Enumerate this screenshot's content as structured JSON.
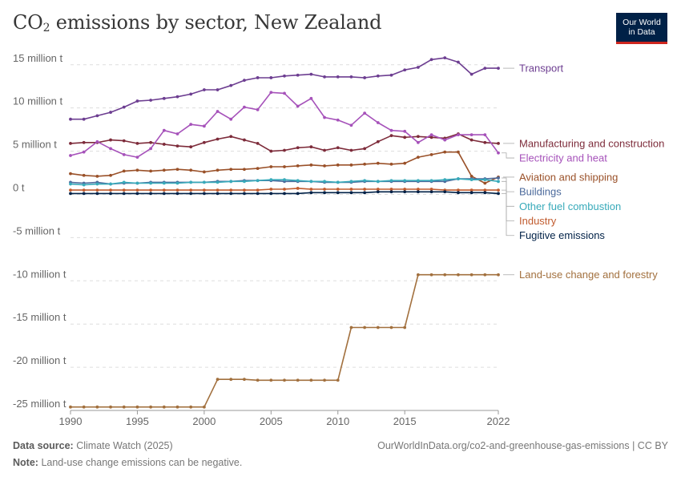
{
  "header": {
    "title_main": "CO",
    "title_sub": "2",
    "title_rest": " emissions by sector, New Zealand",
    "logo_line1": "Our World",
    "logo_line2": "in Data"
  },
  "footer": {
    "source_label": "Data source:",
    "source_text": "Climate Watch (2025)",
    "url": "OurWorldInData.org/co2-and-greenhouse-gas-emissions | CC BY",
    "note_label": "Note:",
    "note_text": "Land-use change emissions can be negative."
  },
  "chart_data": {
    "type": "line",
    "x": [
      1990,
      1991,
      1992,
      1993,
      1994,
      1995,
      1996,
      1997,
      1998,
      1999,
      2000,
      2001,
      2002,
      2003,
      2004,
      2005,
      2006,
      2007,
      2008,
      2009,
      2010,
      2011,
      2012,
      2013,
      2014,
      2015,
      2016,
      2017,
      2018,
      2019,
      2020,
      2021,
      2022
    ],
    "xticks": [
      1990,
      1995,
      2000,
      2005,
      2010,
      2015,
      2022
    ],
    "xlim": [
      1990,
      2022
    ],
    "ylim": [
      -25,
      16
    ],
    "yticks": [
      {
        "value": 15,
        "label": "15 million t"
      },
      {
        "value": 10,
        "label": "10 million t"
      },
      {
        "value": 5,
        "label": "5 million t"
      },
      {
        "value": 0,
        "label": "0 t"
      },
      {
        "value": -5,
        "label": "-5 million t"
      },
      {
        "value": -10,
        "label": "-10 million t"
      },
      {
        "value": -15,
        "label": "-15 million t"
      },
      {
        "value": -20,
        "label": "-20 million t"
      },
      {
        "value": -25,
        "label": "-25 million t"
      }
    ],
    "grid": true,
    "legend": "right-labels",
    "series": [
      {
        "name": "Transport",
        "color": "#6d3e91",
        "values": [
          8.7,
          8.7,
          9.1,
          9.5,
          10.1,
          10.8,
          10.9,
          11.1,
          11.3,
          11.6,
          12.1,
          12.1,
          12.6,
          13.2,
          13.5,
          13.5,
          13.7,
          13.8,
          13.9,
          13.6,
          13.6,
          13.6,
          13.5,
          13.7,
          13.8,
          14.4,
          14.7,
          15.6,
          15.8,
          15.3,
          13.9,
          14.6,
          14.6
        ]
      },
      {
        "name": "Manufacturing and construction",
        "color": "#7d2b3a",
        "values": [
          5.9,
          6.0,
          6.0,
          6.3,
          6.2,
          5.9,
          6.0,
          5.8,
          5.6,
          5.5,
          6.0,
          6.4,
          6.7,
          6.3,
          5.9,
          5.0,
          5.1,
          5.4,
          5.5,
          5.1,
          5.4,
          5.1,
          5.3,
          6.1,
          6.8,
          6.6,
          6.7,
          6.6,
          6.5,
          7.0,
          6.3,
          6.0,
          5.9
        ]
      },
      {
        "name": "Electricity and heat",
        "color": "#a652ba",
        "values": [
          4.5,
          4.9,
          6.1,
          5.3,
          4.6,
          4.3,
          5.3,
          7.4,
          7.0,
          8.1,
          7.9,
          9.6,
          8.7,
          10.1,
          9.8,
          11.8,
          11.7,
          10.2,
          11.1,
          8.9,
          8.6,
          8.0,
          9.4,
          8.3,
          7.4,
          7.3,
          6.0,
          6.9,
          6.3,
          6.9,
          6.9,
          6.9,
          4.8
        ]
      },
      {
        "name": "Aviation and shipping",
        "color": "#9a5129",
        "values": [
          2.4,
          2.2,
          2.1,
          2.2,
          2.7,
          2.8,
          2.7,
          2.8,
          2.9,
          2.8,
          2.6,
          2.8,
          2.9,
          2.9,
          3.0,
          3.2,
          3.2,
          3.3,
          3.4,
          3.3,
          3.4,
          3.4,
          3.5,
          3.6,
          3.5,
          3.6,
          4.3,
          4.6,
          4.9,
          4.9,
          2.1,
          1.3,
          2.0
        ]
      },
      {
        "name": "Buildings",
        "color": "#4c6a9c",
        "values": [
          1.4,
          1.3,
          1.4,
          1.2,
          1.3,
          1.3,
          1.4,
          1.4,
          1.4,
          1.4,
          1.4,
          1.5,
          1.5,
          1.6,
          1.6,
          1.6,
          1.5,
          1.5,
          1.5,
          1.4,
          1.4,
          1.4,
          1.5,
          1.5,
          1.5,
          1.5,
          1.5,
          1.5,
          1.5,
          1.8,
          1.8,
          1.8,
          1.9
        ]
      },
      {
        "name": "Other fuel combustion",
        "color": "#38aaba",
        "values": [
          1.2,
          1.1,
          1.2,
          1.2,
          1.4,
          1.3,
          1.3,
          1.3,
          1.3,
          1.4,
          1.4,
          1.4,
          1.5,
          1.5,
          1.6,
          1.7,
          1.7,
          1.6,
          1.5,
          1.5,
          1.4,
          1.5,
          1.6,
          1.5,
          1.6,
          1.6,
          1.6,
          1.6,
          1.7,
          1.8,
          1.7,
          1.7,
          1.5
        ]
      },
      {
        "name": "Industry",
        "color": "#c15c2f",
        "values": [
          0.5,
          0.5,
          0.5,
          0.5,
          0.5,
          0.5,
          0.5,
          0.5,
          0.5,
          0.5,
          0.5,
          0.5,
          0.5,
          0.5,
          0.5,
          0.6,
          0.6,
          0.7,
          0.6,
          0.6,
          0.6,
          0.6,
          0.6,
          0.6,
          0.6,
          0.6,
          0.6,
          0.6,
          0.5,
          0.5,
          0.5,
          0.5,
          0.5
        ]
      },
      {
        "name": "Fugitive emissions",
        "color": "#002147",
        "values": [
          0.1,
          0.1,
          0.1,
          0.1,
          0.1,
          0.1,
          0.1,
          0.1,
          0.1,
          0.1,
          0.1,
          0.1,
          0.1,
          0.1,
          0.1,
          0.1,
          0.1,
          0.1,
          0.2,
          0.2,
          0.2,
          0.2,
          0.2,
          0.3,
          0.3,
          0.3,
          0.3,
          0.3,
          0.3,
          0.2,
          0.2,
          0.2,
          0.1
        ]
      },
      {
        "name": "Land-use change and forestry",
        "color": "#a2703e",
        "values": [
          -24.6,
          -24.6,
          -24.6,
          -24.6,
          -24.6,
          -24.6,
          -24.6,
          -24.6,
          -24.6,
          -24.6,
          -24.6,
          -21.4,
          -21.4,
          -21.4,
          -21.5,
          -21.5,
          -21.5,
          -21.5,
          -21.5,
          -21.5,
          -21.5,
          -15.4,
          -15.4,
          -15.4,
          -15.4,
          -15.4,
          -9.3,
          -9.3,
          -9.3,
          -9.3,
          -9.3,
          -9.3,
          -9.3
        ]
      }
    ]
  }
}
